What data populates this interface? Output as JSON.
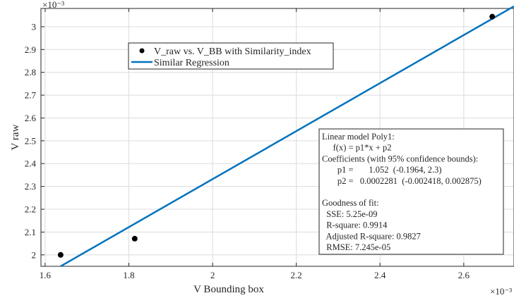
{
  "chart_data": {
    "type": "scatter",
    "xlabel": "V Bounding box",
    "ylabel": "V raw",
    "x_exponent_label": "×10⁻³",
    "y_exponent_label": "×10⁻³",
    "x_scale": 0.001,
    "y_scale": 0.001,
    "xlim": [
      1.59,
      2.72
    ],
    "ylim": [
      1.95,
      3.08
    ],
    "xticks": [
      1.6,
      1.8,
      2.0,
      2.2,
      2.4,
      2.6
    ],
    "xtick_labels": [
      "1.6",
      "1.8",
      "2",
      "2.2",
      "2.4",
      "2.6"
    ],
    "yticks": [
      2.0,
      2.1,
      2.2,
      2.3,
      2.4,
      2.5,
      2.6,
      2.7,
      2.8,
      2.9,
      3.0
    ],
    "ytick_labels": [
      "2",
      "2.1",
      "2.2",
      "2.3",
      "2.4",
      "2.5",
      "2.6",
      "2.7",
      "2.8",
      "2.9",
      "3"
    ],
    "grid": true,
    "legend_position": "top-left",
    "series": [
      {
        "name": "V_raw vs. V_BB with Similarity_index",
        "kind": "scatter",
        "color": "#000000",
        "x": [
          1.637,
          1.814,
          2.668
        ],
        "y": [
          2.0,
          2.071,
          3.044
        ]
      },
      {
        "name": "Similar Regression",
        "kind": "line",
        "color": "#0072BD",
        "x": [
          1.637,
          2.72
        ],
        "y": [
          1.9502,
          3.0895
        ]
      }
    ],
    "annotation": {
      "position": "bottom-right",
      "lines": [
        "Linear model Poly1:",
        "     f(x) = p1*x + p2",
        "Coefficients (with 95% confidence bounds):",
        "       p1 =       1.052  (-0.1964, 2.3)",
        "       p2 =   0.0002281  (-0.002418, 0.002875)",
        "",
        "Goodness of fit:",
        "  SSE: 5.25e-09",
        "  R-square: 0.9914",
        "  Adjusted R-square: 0.9827",
        "  RMSE: 7.245e-05"
      ]
    }
  }
}
